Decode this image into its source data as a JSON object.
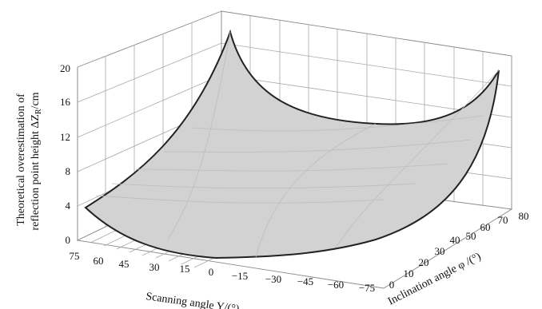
{
  "chart_data": {
    "type": "surface",
    "zlabel_line1": "Theoretical overestimation of",
    "zlabel_line2": "reflection point height  ΔZ",
    "zlabel_sub": "R",
    "zlabel_unit": "/cm",
    "xlabel": "Scanning angle Y/(°)",
    "ylabel": "Inclination angle φ /(°)",
    "z_ticks": [
      "0",
      "4",
      "8",
      "12",
      "16",
      "20"
    ],
    "x_ticks": [
      "75",
      "60",
      "45",
      "30",
      "15",
      "0",
      "−15",
      "−30",
      "−45",
      "−60",
      "−75"
    ],
    "y_ticks": [
      "0",
      "10",
      "20",
      "30",
      "40",
      "50",
      "60",
      "70",
      "80"
    ],
    "xlim": [
      -75,
      75
    ],
    "ylim": [
      0,
      80
    ],
    "zlim": [
      0,
      20
    ],
    "surface_fill": "#cfcfcf",
    "surface_edge": "#222222",
    "corner_values": [
      {
        "scan": 75,
        "incl": 0,
        "z": 4
      },
      {
        "scan": 75,
        "incl": 80,
        "z": 20
      },
      {
        "scan": -75,
        "incl": 80,
        "z": 20
      },
      {
        "scan": -75,
        "incl": 0,
        "z": 0
      },
      {
        "scan": 0,
        "incl": 0,
        "z": 0
      }
    ]
  }
}
